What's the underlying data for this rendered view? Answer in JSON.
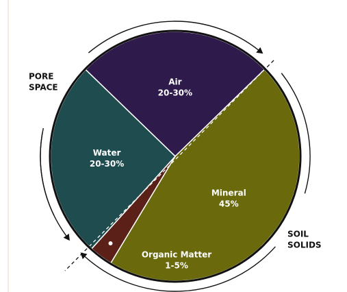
{
  "chart_data": {
    "type": "pie",
    "categories": [
      "Air",
      "Mineral",
      "Organic Matter",
      "Water"
    ],
    "values": [
      25,
      45,
      3,
      25
    ],
    "value_labels": [
      "20-30%",
      "45%",
      "1-5%",
      "20-30%"
    ],
    "colors": [
      "#2e1a4b",
      "#6a690b",
      "#5b2118",
      "#1f4c4e"
    ],
    "annotations": [
      [
        "PORE",
        "SPACE"
      ],
      [
        "SOIL",
        "SOLIDS"
      ]
    ]
  }
}
